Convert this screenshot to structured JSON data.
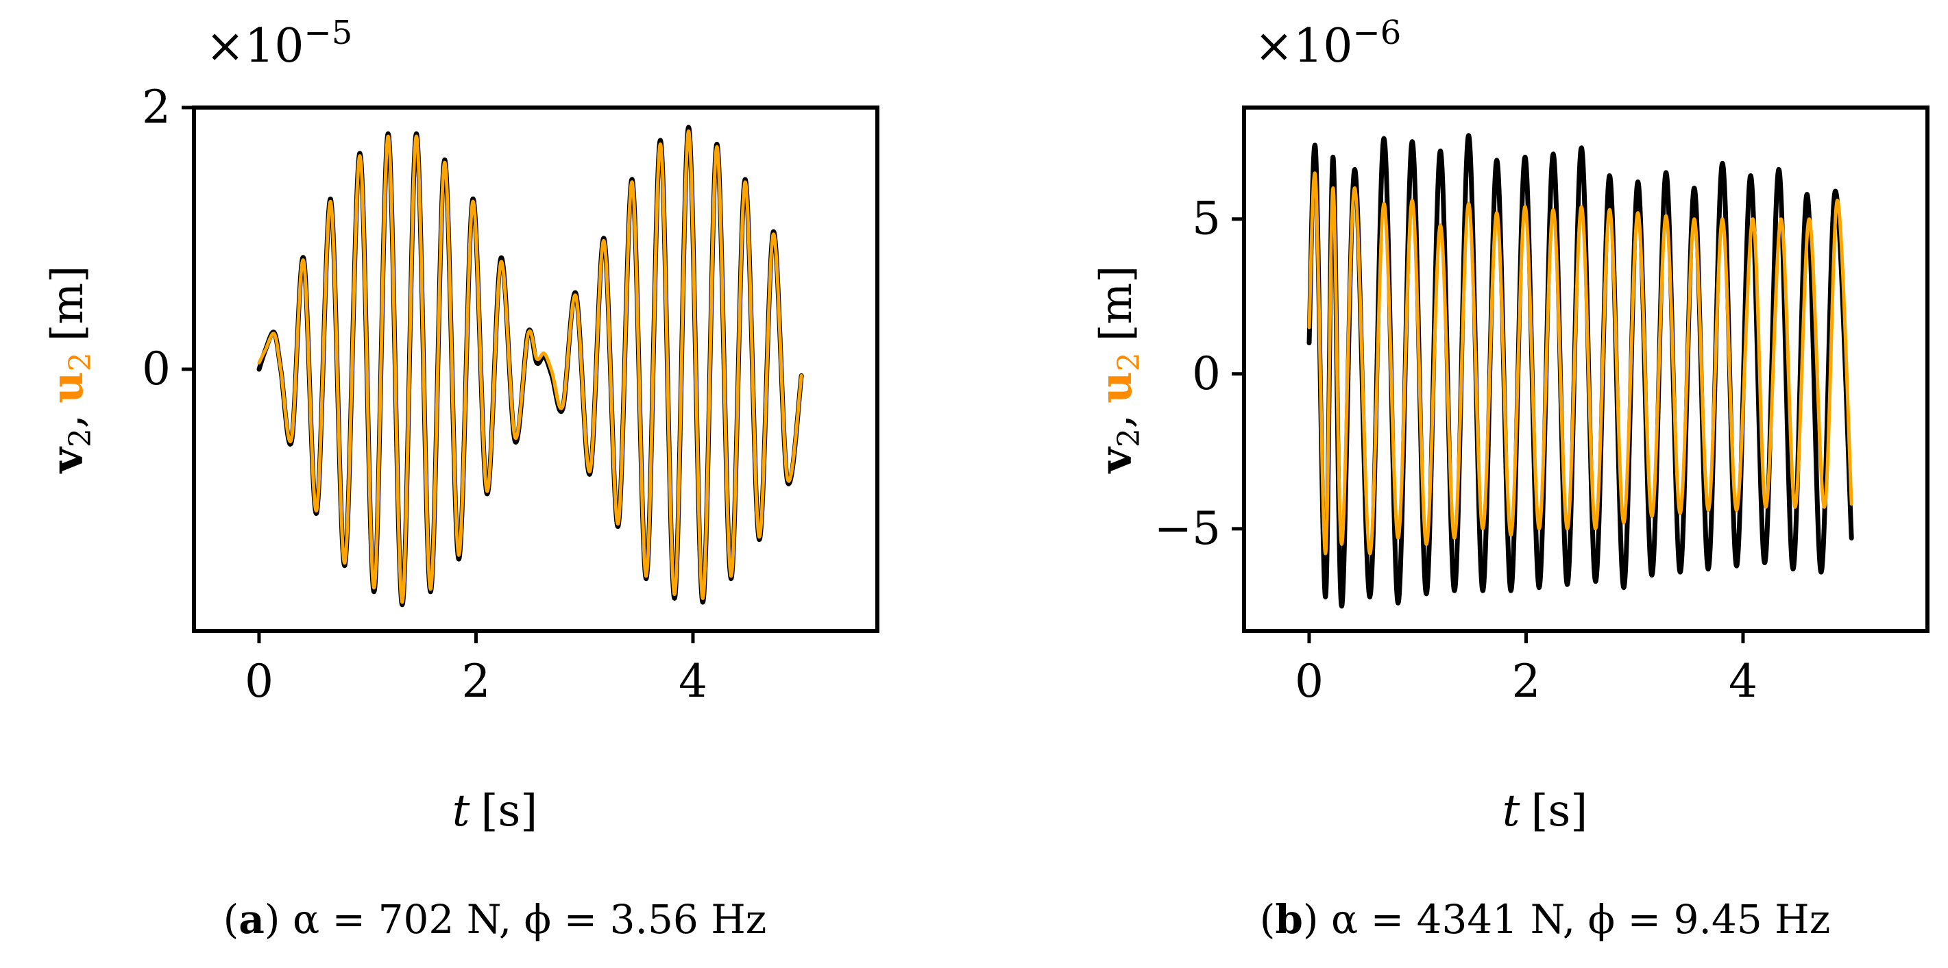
{
  "colors": {
    "series_v2": "#000000",
    "series_u2": "#FFA500"
  },
  "chart_data": [
    {
      "type": "line",
      "panel_label": "(a)",
      "caption": {
        "letter": "a",
        "alpha_text": "α = 702 N",
        "phi_text": "ϕ = 3.56 Hz"
      },
      "multiplier": {
        "base": "×10",
        "exponent": "−5"
      },
      "ylabel": {
        "v": "v",
        "u": "u",
        "sub": "2",
        "sep": ",",
        "unit": "[m]"
      },
      "xlabel": {
        "var": "t",
        "unit": "[s]"
      },
      "xlim": [
        -0.6,
        5.7
      ],
      "ylim": [
        -2.0,
        2.0
      ],
      "x_ticks": [
        0,
        2,
        4
      ],
      "x_tick_labels": [
        "0",
        "2",
        "4"
      ],
      "y_ticks": [
        0,
        2
      ],
      "y_tick_labels": [
        "0",
        "2"
      ],
      "legend": "none",
      "grid": false,
      "series": [
        {
          "name": "v2",
          "x": [
            0.0,
            0.06,
            0.14,
            0.2,
            0.3,
            0.41,
            0.53,
            0.66,
            0.79,
            0.93,
            1.06,
            1.19,
            1.32,
            1.45,
            1.58,
            1.71,
            1.84,
            1.97,
            2.1,
            2.23,
            2.36,
            2.48,
            2.56,
            2.63,
            2.7,
            2.8,
            2.92,
            3.05,
            3.18,
            3.31,
            3.44,
            3.57,
            3.7,
            3.83,
            3.96,
            4.09,
            4.22,
            4.35,
            4.48,
            4.61,
            4.74,
            4.87,
            5.0
          ],
          "values": [
            0.0,
            0.15,
            0.28,
            0.0,
            -0.55,
            0.85,
            -1.1,
            1.3,
            -1.5,
            1.65,
            -1.7,
            1.8,
            -1.8,
            1.8,
            -1.7,
            1.6,
            -1.45,
            1.3,
            -0.95,
            0.85,
            -0.55,
            0.28,
            0.05,
            0.1,
            -0.05,
            -0.3,
            0.58,
            -0.8,
            1.0,
            -1.2,
            1.45,
            -1.6,
            1.75,
            -1.75,
            1.85,
            -1.78,
            1.72,
            -1.6,
            1.45,
            -1.3,
            1.05,
            -0.85,
            -0.05
          ]
        },
        {
          "name": "u2",
          "x": [
            0.0,
            0.06,
            0.14,
            0.2,
            0.3,
            0.41,
            0.53,
            0.66,
            0.79,
            0.93,
            1.06,
            1.19,
            1.32,
            1.45,
            1.58,
            1.71,
            1.84,
            1.97,
            2.1,
            2.23,
            2.36,
            2.48,
            2.56,
            2.63,
            2.7,
            2.8,
            2.92,
            3.05,
            3.18,
            3.31,
            3.44,
            3.57,
            3.7,
            3.83,
            3.96,
            4.09,
            4.22,
            4.35,
            4.48,
            4.61,
            4.74,
            4.87,
            5.0
          ],
          "values": [
            0.05,
            0.15,
            0.27,
            0.0,
            -0.53,
            0.83,
            -1.08,
            1.28,
            -1.48,
            1.63,
            -1.67,
            1.78,
            -1.78,
            1.78,
            -1.68,
            1.58,
            -1.42,
            1.28,
            -0.93,
            0.82,
            -0.52,
            0.27,
            0.08,
            0.12,
            -0.02,
            -0.28,
            0.56,
            -0.78,
            0.98,
            -1.18,
            1.43,
            -1.58,
            1.72,
            -1.72,
            1.82,
            -1.75,
            1.7,
            -1.58,
            1.43,
            -1.28,
            1.03,
            -0.83,
            -0.05
          ]
        }
      ]
    },
    {
      "type": "line",
      "panel_label": "(b)",
      "caption": {
        "letter": "b",
        "alpha_text": "α = 4341 N",
        "phi_text": "ϕ = 9.45 Hz"
      },
      "multiplier": {
        "base": "×10",
        "exponent": "−6"
      },
      "ylabel": {
        "v": "v",
        "u": "u",
        "sub": "2",
        "sep": ",",
        "unit": "[m]"
      },
      "xlabel": {
        "var": "t",
        "unit": "[s]"
      },
      "xlim": [
        -0.6,
        5.7
      ],
      "ylim": [
        -8.3,
        8.6
      ],
      "x_ticks": [
        0,
        2,
        4
      ],
      "x_tick_labels": [
        "0",
        "2",
        "4"
      ],
      "y_ticks": [
        -5,
        0,
        5
      ],
      "y_tick_labels": [
        "−5",
        "0",
        "5"
      ],
      "legend": "none",
      "grid": false,
      "series": [
        {
          "name": "v2",
          "x": [
            0.0,
            0.06,
            0.15,
            0.22,
            0.3,
            0.42,
            0.56,
            0.69,
            0.82,
            0.95,
            1.08,
            1.21,
            1.34,
            1.47,
            1.6,
            1.73,
            1.86,
            1.99,
            2.12,
            2.25,
            2.38,
            2.51,
            2.64,
            2.77,
            2.9,
            3.03,
            3.16,
            3.29,
            3.42,
            3.55,
            3.68,
            3.81,
            3.94,
            4.07,
            4.2,
            4.33,
            4.46,
            4.59,
            4.72,
            4.85,
            5.0
          ],
          "values": [
            1.0,
            7.2,
            -7.2,
            7.0,
            -7.5,
            6.6,
            -7.2,
            7.6,
            -7.4,
            7.5,
            -7.1,
            7.2,
            -7.0,
            7.7,
            -7.0,
            6.9,
            -7.0,
            7.0,
            -6.9,
            7.1,
            -6.8,
            7.3,
            -6.7,
            6.4,
            -6.9,
            6.2,
            -6.5,
            6.5,
            -6.4,
            6.0,
            -6.3,
            6.8,
            -6.2,
            6.4,
            -6.1,
            6.6,
            -6.3,
            5.8,
            -6.4,
            5.9,
            -5.3
          ]
        },
        {
          "name": "u2",
          "x": [
            0.0,
            0.06,
            0.15,
            0.22,
            0.3,
            0.42,
            0.56,
            0.69,
            0.82,
            0.95,
            1.08,
            1.21,
            1.34,
            1.47,
            1.6,
            1.73,
            1.86,
            1.99,
            2.12,
            2.25,
            2.38,
            2.51,
            2.64,
            2.77,
            2.9,
            3.03,
            3.16,
            3.29,
            3.42,
            3.55,
            3.68,
            3.81,
            3.94,
            4.09,
            4.21,
            4.35,
            4.48,
            4.61,
            4.75,
            4.87,
            5.0
          ],
          "values": [
            1.5,
            6.3,
            -5.8,
            6.0,
            -5.5,
            6.0,
            -5.8,
            5.5,
            -5.3,
            5.6,
            -5.5,
            4.8,
            -5.3,
            5.5,
            -5.0,
            5.2,
            -5.2,
            5.4,
            -5.0,
            5.3,
            -5.0,
            5.4,
            -5.0,
            5.3,
            -4.8,
            5.2,
            -4.6,
            5.1,
            -4.5,
            5.0,
            -4.4,
            5.0,
            -4.4,
            5.0,
            -4.3,
            5.0,
            -4.3,
            5.0,
            -4.3,
            5.6,
            -4.2
          ]
        }
      ]
    }
  ]
}
